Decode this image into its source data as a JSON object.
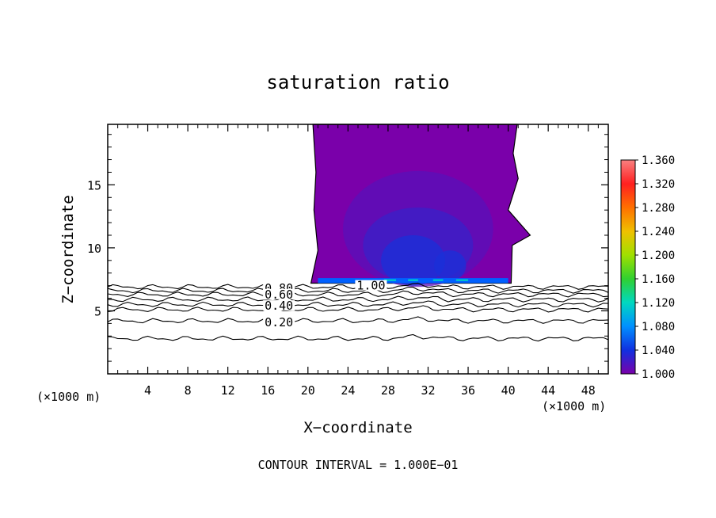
{
  "chart_data": {
    "type": "contour",
    "title": "saturation ratio",
    "xlabel": "X−coordinate",
    "ylabel": "Z−coordinate",
    "x_unit_left": "(×1000 m)",
    "x_unit_right": "(×1000 m)",
    "footer": "CONTOUR INTERVAL = 1.000E−01",
    "xlim": [
      0,
      50
    ],
    "ylim": [
      0,
      19.8
    ],
    "x_ticks": [
      "4",
      "8",
      "12",
      "16",
      "20",
      "24",
      "28",
      "32",
      "36",
      "40",
      "44",
      "48"
    ],
    "y_ticks": [
      "5",
      "10",
      "15"
    ],
    "colorbar": {
      "range": [
        1.0,
        1.36
      ],
      "labels": [
        "1.360",
        "1.320",
        "1.280",
        "1.240",
        "1.200",
        "1.160",
        "1.120",
        "1.080",
        "1.040",
        "1.000"
      ],
      "colors": [
        "#f88080",
        "#ff2020",
        "#ff7000",
        "#f0c000",
        "#a0e000",
        "#30d030",
        "#00d8c0",
        "#0090ff",
        "#1030e0",
        "#7a00aa"
      ]
    },
    "contour_line_labels": [
      {
        "text": "1.00",
        "x": 26.3,
        "z": 7.0
      },
      {
        "text": "0.80",
        "x": 17.1,
        "z": 6.8
      },
      {
        "text": "0.60",
        "x": 17.1,
        "z": 6.3
      },
      {
        "text": "0.40",
        "x": 17.1,
        "z": 5.4
      },
      {
        "text": "0.20",
        "x": 17.1,
        "z": 4.1
      }
    ],
    "contour_levels_below_cloud": [
      6.9,
      6.6,
      6.3,
      5.9,
      5.5,
      5.1,
      4.2,
      2.8
    ],
    "cloud_fill": {
      "base_color": "#7a00aa",
      "inner_colors": [
        "#5a10b8",
        "#3a20c8",
        "#1a30d8",
        "#0060ff",
        "#00d8c0"
      ],
      "outline": [
        [
          20.5,
          19.8
        ],
        [
          40.9,
          19.8
        ],
        [
          40.5,
          17.5
        ],
        [
          41.0,
          15.5
        ],
        [
          40.0,
          13.0
        ],
        [
          42.2,
          11.0
        ],
        [
          40.4,
          10.2
        ],
        [
          40.3,
          7.2
        ],
        [
          20.3,
          7.2
        ],
        [
          21.0,
          9.8
        ],
        [
          20.6,
          13.0
        ],
        [
          20.8,
          16.0
        ]
      ]
    }
  }
}
